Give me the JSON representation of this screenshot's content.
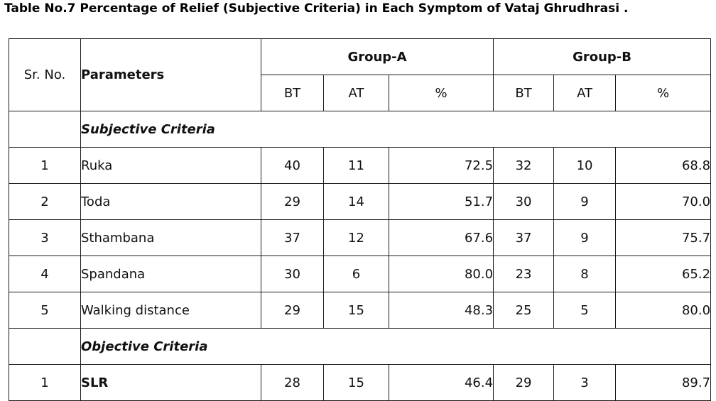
{
  "title": "Table No.7 Percentage of Relief (Subjective Criteria) in Each Symptom of Vataj Ghrudhrasi .",
  "table": {
    "group_a": "Group-A",
    "group_b": "Group-B",
    "header": {
      "sr_no": "Sr. No.",
      "parameters": "Parameters",
      "a_bt": "BT",
      "a_at": "AT",
      "a_pct": "%",
      "b_bt": "BT",
      "b_at": "AT",
      "b_pct": "%"
    },
    "sections": [
      {
        "label": "Subjective Criteria",
        "rows": [
          {
            "sr": "1",
            "param": "Ruka",
            "a_bt": "40",
            "a_at": "11",
            "a_pct": "72.5",
            "b_bt": "32",
            "b_at": "10",
            "b_pct": "68.8"
          },
          {
            "sr": "2",
            "param": "Toda",
            "a_bt": "29",
            "a_at": "14",
            "a_pct": "51.7",
            "b_bt": "30",
            "b_at": "9",
            "b_pct": "70.0"
          },
          {
            "sr": "3",
            "param": "Sthambana",
            "a_bt": "37",
            "a_at": "12",
            "a_pct": "67.6",
            "b_bt": "37",
            "b_at": "9",
            "b_pct": "75.7"
          },
          {
            "sr": "4",
            "param": "Spandana",
            "a_bt": "30",
            "a_at": "6",
            "a_pct": "80.0",
            "b_bt": "23",
            "b_at": "8",
            "b_pct": "65.2"
          },
          {
            "sr": "5",
            "param": "Walking distance",
            "a_bt": "29",
            "a_at": "15",
            "a_pct": "48.3",
            "b_bt": "25",
            "b_at": "5",
            "b_pct": "80.0"
          }
        ]
      },
      {
        "label": "Objective Criteria",
        "rows": [
          {
            "sr": "1",
            "param": "SLR",
            "a_bt": "28",
            "a_at": "15",
            "a_pct": "46.4",
            "b_bt": "29",
            "b_at": "3",
            "b_pct": "89.7"
          }
        ]
      }
    ]
  }
}
